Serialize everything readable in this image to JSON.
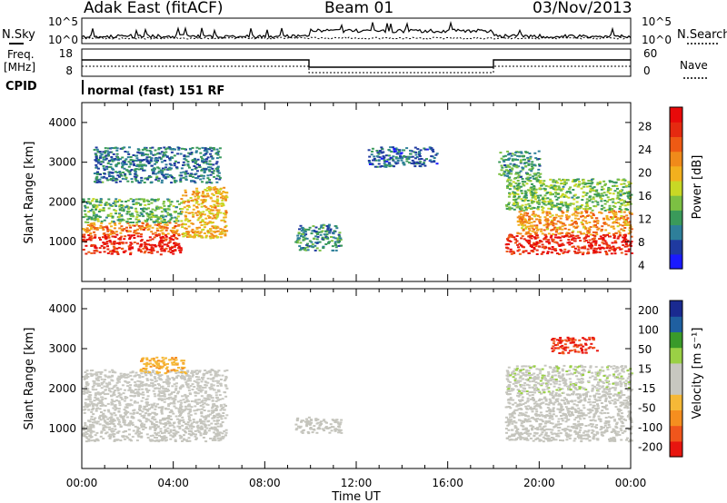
{
  "header": {
    "station": "Adak East (fitACF)",
    "beam": "Beam 01",
    "date": "03/Nov/2013"
  },
  "noise_panel": {
    "left_label": "N.Sky",
    "right_label": "N.Search",
    "left_ticks": [
      "10^5",
      "10^0"
    ],
    "right_ticks": [
      "10^5",
      "10^0"
    ]
  },
  "freq_panel": {
    "left_label_1": "Freq.",
    "left_label_2": "[MHz]",
    "right_label": "Nave",
    "left_ticks": [
      "18",
      "8"
    ],
    "right_ticks": [
      "60",
      "0"
    ]
  },
  "cpid": {
    "label": "CPID",
    "text": "normal (fast) 151 RF"
  },
  "colors": {
    "power_scale": [
      "#1a1aff",
      "#1f3aa0",
      "#2e7f9a",
      "#3a9a5a",
      "#7cc043",
      "#c8d825",
      "#f2b01e",
      "#f08a1a",
      "#ee5a14",
      "#e52a10",
      "#e80a0a"
    ],
    "velocity_scale": [
      "#e8150f",
      "#f0561c",
      "#f58e1f",
      "#f5b837",
      "#c7c7c0",
      "#c7c7c0",
      "#9ad045",
      "#3a9a2a",
      "#1f5fa0",
      "#1a2a90"
    ],
    "ground_scatter": "#c4c4bc"
  },
  "chart_data": [
    {
      "type": "heatmap",
      "title": "",
      "xlabel": "",
      "ylabel": "Slant Range [km]",
      "xlim": [
        0,
        24
      ],
      "ylim": [
        0,
        4500
      ],
      "xticks": [
        "00:00",
        "04:00",
        "08:00",
        "12:00",
        "16:00",
        "20:00",
        "00:00"
      ],
      "yticks": [
        1000,
        2000,
        3000,
        4000
      ],
      "colorbar": {
        "label": "Power [dB]",
        "ticks": [
          "28",
          "24",
          "20",
          "16",
          "12",
          "8",
          "4"
        ],
        "range": [
          0,
          30
        ]
      },
      "blobs": [
        {
          "t0": 0.0,
          "t1": 4.3,
          "r0": 700,
          "r1": 1200,
          "value": 27
        },
        {
          "t0": 0.0,
          "t1": 4.3,
          "r0": 1200,
          "r1": 1500,
          "value": 21
        },
        {
          "t0": 0.0,
          "t1": 4.3,
          "r0": 1500,
          "r1": 2100,
          "value": 11
        },
        {
          "t0": 4.3,
          "t1": 6.3,
          "r0": 1100,
          "r1": 2400,
          "value": 18
        },
        {
          "t0": 9.3,
          "t1": 11.3,
          "r0": 800,
          "r1": 1450,
          "value": 8
        },
        {
          "t0": 18.5,
          "t1": 24.0,
          "r0": 700,
          "r1": 1200,
          "value": 27
        },
        {
          "t0": 19.0,
          "t1": 24.0,
          "r0": 1200,
          "r1": 1800,
          "value": 20
        },
        {
          "t0": 18.5,
          "t1": 24.0,
          "r0": 1800,
          "r1": 2600,
          "value": 12
        },
        {
          "t0": 18.2,
          "t1": 20.0,
          "r0": 2600,
          "r1": 3300,
          "value": 9
        },
        {
          "t0": 0.5,
          "t1": 6.0,
          "r0": 2500,
          "r1": 3400,
          "value": 7
        },
        {
          "t0": 12.5,
          "t1": 15.5,
          "r0": 2900,
          "r1": 3400,
          "value": 6
        }
      ]
    },
    {
      "type": "heatmap",
      "title": "",
      "xlabel": "Time UT",
      "ylabel": "Slant Range [km]",
      "xlim": [
        0,
        24
      ],
      "ylim": [
        0,
        4500
      ],
      "xticks": [
        "00:00",
        "04:00",
        "08:00",
        "12:00",
        "16:00",
        "20:00",
        "00:00"
      ],
      "yticks": [
        1000,
        2000,
        3000,
        4000
      ],
      "colorbar": {
        "label": "Velocity [m s⁻¹]",
        "ticks": [
          "200",
          "100",
          "50",
          "15",
          "-15",
          "-50",
          "-100",
          "-200"
        ],
        "range": [
          -250,
          250
        ]
      },
      "blobs": [
        {
          "t0": 0.0,
          "t1": 6.3,
          "r0": 700,
          "r1": 1600,
          "value": 0
        },
        {
          "t0": 0.0,
          "t1": 6.3,
          "r0": 1600,
          "r1": 2500,
          "value": -20
        },
        {
          "t0": 2.5,
          "t1": 4.5,
          "r0": 2400,
          "r1": 2800,
          "value": -90
        },
        {
          "t0": 9.3,
          "t1": 11.3,
          "r0": 900,
          "r1": 1300,
          "value": 0
        },
        {
          "t0": 18.5,
          "t1": 24.0,
          "r0": 700,
          "r1": 1900,
          "value": 0
        },
        {
          "t0": 18.5,
          "t1": 24.0,
          "r0": 1900,
          "r1": 2600,
          "value": 30
        },
        {
          "t0": 20.5,
          "t1": 22.5,
          "r0": 2900,
          "r1": 3300,
          "value": -200
        }
      ]
    }
  ]
}
